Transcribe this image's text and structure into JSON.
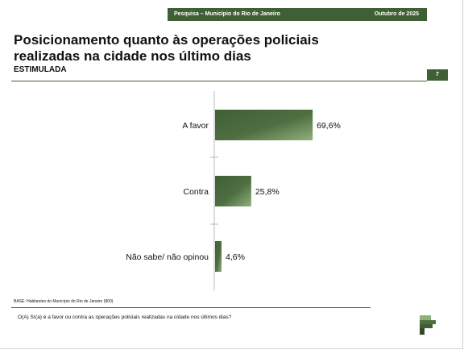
{
  "header": {
    "survey": "Pesquisa – Município do Rio de Janeiro",
    "date": "Outubro de 2025"
  },
  "title": "Posicionamento quanto às operações policiais realizadas na cidade nos último dias",
  "subtitle": "ESTIMULADA",
  "page_number": "7",
  "footer": {
    "base": "BASE: Habitantes do Município do Rio de Janeiro (800)",
    "question": "O(A) Sr(a) é a favor ou contra as operações policiais realizadas na cidade nos últimos dias?"
  },
  "colors": {
    "accent": "#3f5f35",
    "bar_light": "#8fb07a"
  },
  "chart_data": {
    "type": "bar",
    "orientation": "horizontal",
    "categories": [
      "A favor",
      "Contra",
      "Não sabe/ não opinou"
    ],
    "values": [
      69.6,
      25.8,
      4.6
    ],
    "value_labels": [
      "69,6%",
      "25,8%",
      "4,6%"
    ],
    "unit": "%",
    "xlim": [
      0,
      100
    ],
    "grid": false
  }
}
